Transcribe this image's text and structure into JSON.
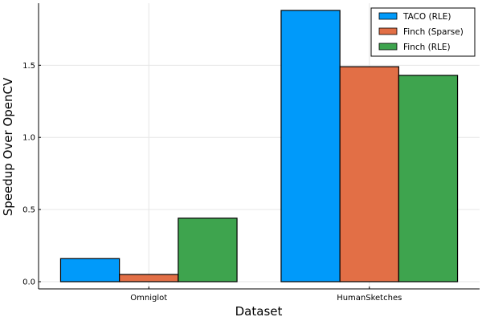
{
  "chart_data": {
    "type": "bar",
    "title": "",
    "xlabel": "Dataset",
    "ylabel": "Speedup Over OpenCV",
    "categories": [
      "Omniglot",
      "HumanSketches"
    ],
    "series": [
      {
        "name": "TACO (RLE)",
        "values": [
          0.16,
          1.88
        ],
        "color": "#009AFA"
      },
      {
        "name": "Finch (Sparse)",
        "values": [
          0.05,
          1.49
        ],
        "color": "#E26F46"
      },
      {
        "name": "Finch (RLE)",
        "values": [
          0.44,
          1.43
        ],
        "color": "#3EA44E"
      }
    ],
    "ylim": [
      -0.05,
      1.93
    ],
    "yticks": [
      0.0,
      0.5,
      1.0,
      1.5
    ],
    "ytick_labels": [
      "0.0",
      "0.5",
      "1.0",
      "1.5"
    ],
    "grid": true,
    "legend_position": "top-right"
  }
}
